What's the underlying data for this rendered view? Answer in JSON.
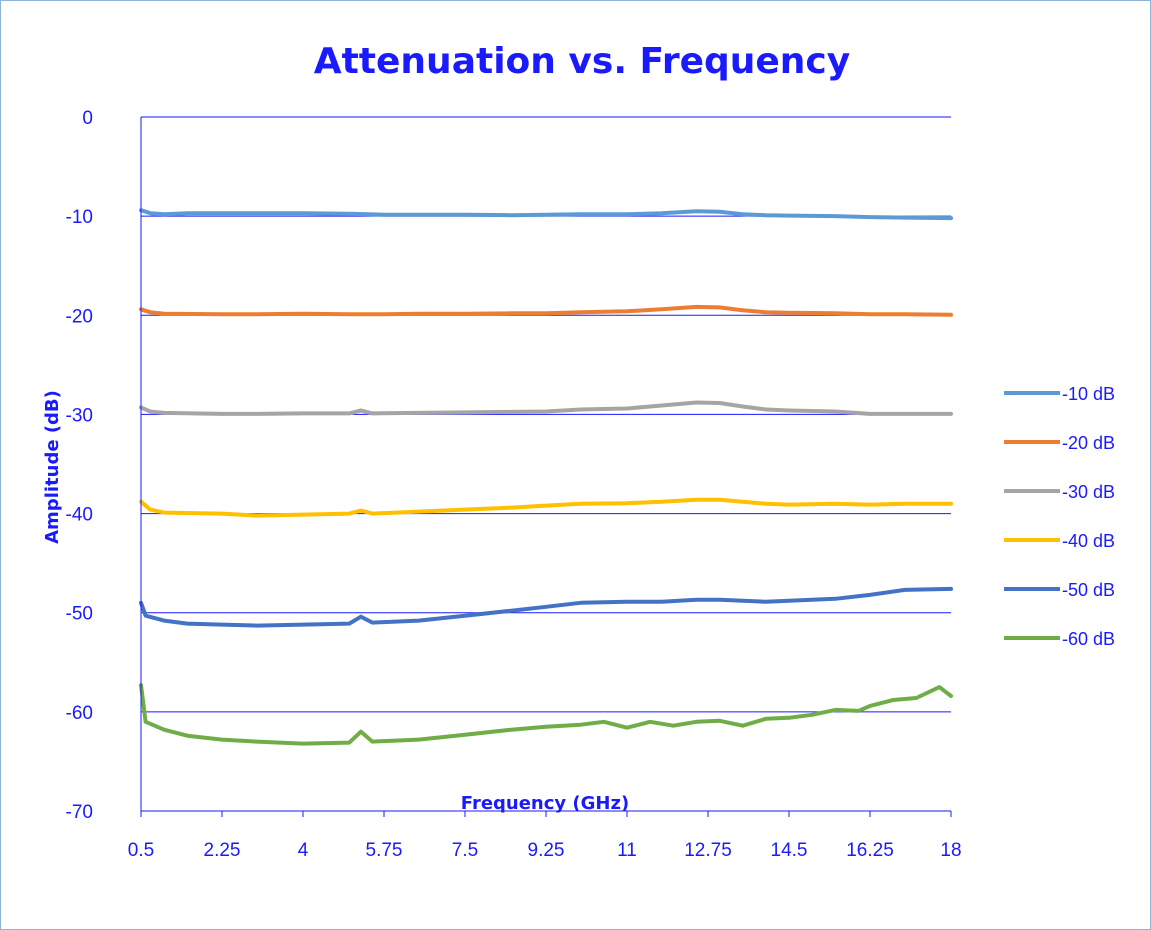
{
  "chart_data": {
    "type": "line",
    "title": "Attenuation vs. Frequency",
    "xlabel": "Frequency (GHz)",
    "ylabel": "Amplitude (dB)",
    "xlim": [
      0.5,
      18
    ],
    "ylim": [
      -70,
      0
    ],
    "x_ticks": [
      "0.5",
      "2.25",
      "4",
      "5.75",
      "7.5",
      "9.25",
      "11",
      "12.75",
      "14.5",
      "16.25",
      "18"
    ],
    "y_ticks": [
      "0",
      "-10",
      "-20",
      "-30",
      "-40",
      "-50",
      "-60",
      "-70"
    ],
    "grid": "horizontal",
    "legend_position": "right",
    "colors": {
      "text": "#1a1aff",
      "axis": "#1a1aff",
      "grid": "#1a1aff"
    },
    "series": [
      {
        "name": "-10 dB",
        "color": "#5b9bd5",
        "points": [
          [
            0.5,
            -9.4
          ],
          [
            0.7,
            -9.7
          ],
          [
            1,
            -9.8
          ],
          [
            1.5,
            -9.7
          ],
          [
            2.25,
            -9.7
          ],
          [
            3,
            -9.7
          ],
          [
            4,
            -9.7
          ],
          [
            5,
            -9.75
          ],
          [
            5.75,
            -9.85
          ],
          [
            6.5,
            -9.85
          ],
          [
            7.5,
            -9.85
          ],
          [
            8.5,
            -9.9
          ],
          [
            9.25,
            -9.85
          ],
          [
            10,
            -9.8
          ],
          [
            11,
            -9.8
          ],
          [
            11.75,
            -9.7
          ],
          [
            12.5,
            -9.5
          ],
          [
            13,
            -9.55
          ],
          [
            13.5,
            -9.8
          ],
          [
            14,
            -9.9
          ],
          [
            14.5,
            -9.95
          ],
          [
            15.5,
            -10.0
          ],
          [
            16.25,
            -10.1
          ],
          [
            17,
            -10.15
          ],
          [
            18,
            -10.2
          ]
        ]
      },
      {
        "name": "-20 dB",
        "color": "#ed7d31",
        "points": [
          [
            0.5,
            -19.4
          ],
          [
            0.7,
            -19.7
          ],
          [
            1,
            -19.85
          ],
          [
            2.25,
            -19.9
          ],
          [
            3,
            -19.9
          ],
          [
            4,
            -19.85
          ],
          [
            5,
            -19.9
          ],
          [
            5.75,
            -19.9
          ],
          [
            6.5,
            -19.85
          ],
          [
            7.5,
            -19.85
          ],
          [
            8.5,
            -19.8
          ],
          [
            9.25,
            -19.8
          ],
          [
            10,
            -19.7
          ],
          [
            11,
            -19.6
          ],
          [
            11.75,
            -19.4
          ],
          [
            12.5,
            -19.15
          ],
          [
            13,
            -19.2
          ],
          [
            13.5,
            -19.5
          ],
          [
            14,
            -19.7
          ],
          [
            14.5,
            -19.75
          ],
          [
            15.5,
            -19.8
          ],
          [
            16.25,
            -19.9
          ],
          [
            17,
            -19.9
          ],
          [
            18,
            -19.95
          ]
        ]
      },
      {
        "name": "-30 dB",
        "color": "#a5a5a5",
        "points": [
          [
            0.5,
            -29.3
          ],
          [
            0.7,
            -29.7
          ],
          [
            1,
            -29.85
          ],
          [
            2.25,
            -29.95
          ],
          [
            3,
            -29.95
          ],
          [
            4,
            -29.9
          ],
          [
            5,
            -29.9
          ],
          [
            5.25,
            -29.6
          ],
          [
            5.5,
            -29.9
          ],
          [
            6.5,
            -29.85
          ],
          [
            7.5,
            -29.8
          ],
          [
            8.5,
            -29.75
          ],
          [
            9.25,
            -29.7
          ],
          [
            10,
            -29.5
          ],
          [
            11,
            -29.4
          ],
          [
            11.75,
            -29.1
          ],
          [
            12.5,
            -28.8
          ],
          [
            13,
            -28.85
          ],
          [
            13.5,
            -29.2
          ],
          [
            14,
            -29.5
          ],
          [
            14.5,
            -29.6
          ],
          [
            15.5,
            -29.7
          ],
          [
            16.25,
            -29.95
          ],
          [
            17,
            -29.95
          ],
          [
            18,
            -29.95
          ]
        ]
      },
      {
        "name": "-40 dB",
        "color": "#ffc000",
        "points": [
          [
            0.5,
            -38.8
          ],
          [
            0.7,
            -39.6
          ],
          [
            1,
            -39.9
          ],
          [
            2.25,
            -40.0
          ],
          [
            3,
            -40.2
          ],
          [
            4,
            -40.1
          ],
          [
            5,
            -40.0
          ],
          [
            5.25,
            -39.7
          ],
          [
            5.5,
            -40.0
          ],
          [
            6.5,
            -39.8
          ],
          [
            7.5,
            -39.6
          ],
          [
            8.5,
            -39.4
          ],
          [
            9.25,
            -39.2
          ],
          [
            10,
            -39.0
          ],
          [
            11,
            -38.95
          ],
          [
            11.75,
            -38.8
          ],
          [
            12.5,
            -38.6
          ],
          [
            13,
            -38.6
          ],
          [
            13.5,
            -38.8
          ],
          [
            14,
            -39.0
          ],
          [
            14.5,
            -39.1
          ],
          [
            15.5,
            -39.0
          ],
          [
            16.25,
            -39.1
          ],
          [
            17,
            -39.0
          ],
          [
            18,
            -39.0
          ]
        ]
      },
      {
        "name": "-50 dB",
        "color": "#4472c4",
        "points": [
          [
            0.5,
            -49.0
          ],
          [
            0.6,
            -50.3
          ],
          [
            1,
            -50.8
          ],
          [
            1.5,
            -51.1
          ],
          [
            2.25,
            -51.2
          ],
          [
            3,
            -51.3
          ],
          [
            4,
            -51.2
          ],
          [
            5,
            -51.1
          ],
          [
            5.25,
            -50.4
          ],
          [
            5.5,
            -51.0
          ],
          [
            6.5,
            -50.8
          ],
          [
            7.5,
            -50.3
          ],
          [
            8.5,
            -49.8
          ],
          [
            9.25,
            -49.4
          ],
          [
            10,
            -49.0
          ],
          [
            11,
            -48.9
          ],
          [
            11.75,
            -48.9
          ],
          [
            12.5,
            -48.7
          ],
          [
            13,
            -48.7
          ],
          [
            13.5,
            -48.8
          ],
          [
            14,
            -48.9
          ],
          [
            14.5,
            -48.8
          ],
          [
            15.5,
            -48.6
          ],
          [
            16.25,
            -48.2
          ],
          [
            17,
            -47.7
          ],
          [
            18,
            -47.6
          ]
        ]
      },
      {
        "name": "-60 dB",
        "color": "#70ad47",
        "points": [
          [
            0.5,
            -57.3
          ],
          [
            0.6,
            -61.0
          ],
          [
            1,
            -61.8
          ],
          [
            1.5,
            -62.4
          ],
          [
            2.25,
            -62.8
          ],
          [
            3,
            -63.0
          ],
          [
            4,
            -63.2
          ],
          [
            5,
            -63.1
          ],
          [
            5.25,
            -62.0
          ],
          [
            5.5,
            -63.0
          ],
          [
            6.5,
            -62.8
          ],
          [
            7.5,
            -62.3
          ],
          [
            8.5,
            -61.8
          ],
          [
            9.25,
            -61.5
          ],
          [
            10,
            -61.3
          ],
          [
            10.5,
            -61.0
          ],
          [
            11,
            -61.6
          ],
          [
            11.5,
            -61.0
          ],
          [
            12,
            -61.4
          ],
          [
            12.5,
            -61.0
          ],
          [
            13,
            -60.9
          ],
          [
            13.5,
            -61.4
          ],
          [
            14,
            -60.7
          ],
          [
            14.5,
            -60.6
          ],
          [
            15,
            -60.3
          ],
          [
            15.5,
            -59.8
          ],
          [
            16,
            -59.9
          ],
          [
            16.25,
            -59.4
          ],
          [
            16.75,
            -58.8
          ],
          [
            17.25,
            -58.6
          ],
          [
            17.75,
            -57.5
          ],
          [
            18,
            -58.4
          ]
        ]
      }
    ]
  }
}
